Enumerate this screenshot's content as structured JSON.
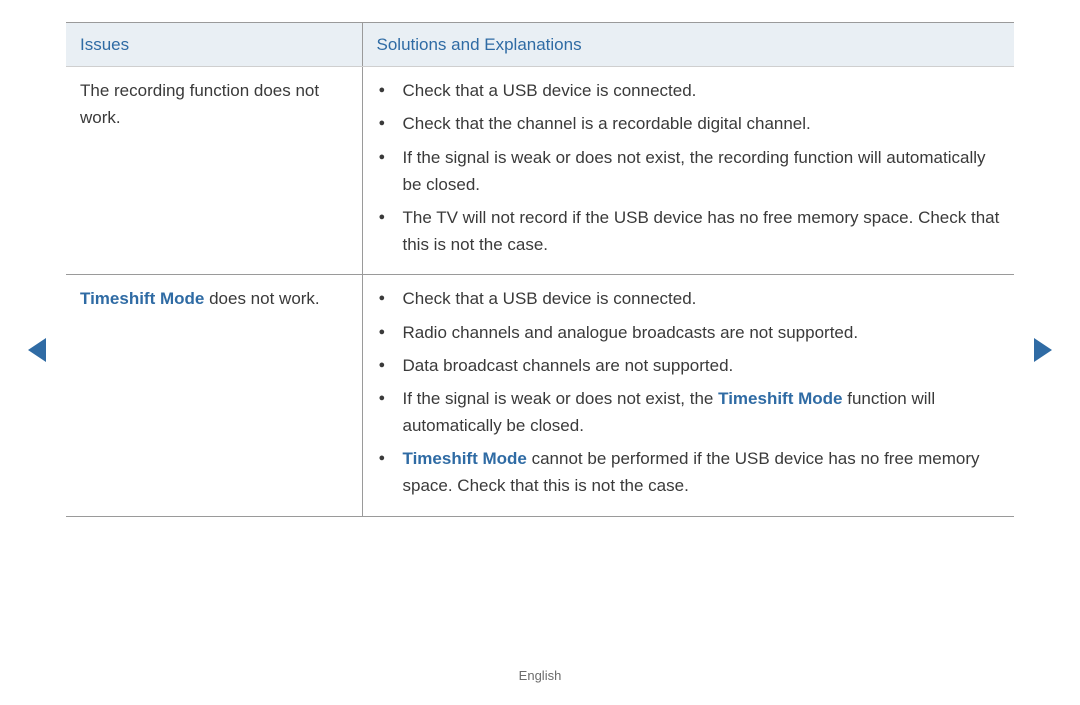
{
  "accent_color": "#2f6ba4",
  "header_bg": "#e9eff4",
  "border_color": "#9a9a9a",
  "text_color": "#3a3a3a",
  "table": {
    "header": {
      "issues": "Issues",
      "solutions": "Solutions and Explanations"
    },
    "rows": [
      {
        "issue_parts": [
          {
            "text": "The recording function does not work.",
            "highlight": false
          }
        ],
        "solutions": [
          [
            {
              "text": "Check that a USB device is connected.",
              "highlight": false
            }
          ],
          [
            {
              "text": "Check that the channel is a recordable digital channel.",
              "highlight": false
            }
          ],
          [
            {
              "text": "If the signal is weak or does not exist, the recording function will automatically be closed.",
              "highlight": false
            }
          ],
          [
            {
              "text": "The TV will not record if the USB device has no free memory space. Check that this is not the case.",
              "highlight": false
            }
          ]
        ]
      },
      {
        "issue_parts": [
          {
            "text": "Timeshift Mode",
            "highlight": true
          },
          {
            "text": " does not work.",
            "highlight": false
          }
        ],
        "solutions": [
          [
            {
              "text": "Check that a USB device is connected.",
              "highlight": false
            }
          ],
          [
            {
              "text": "Radio channels and analogue broadcasts are not supported.",
              "highlight": false
            }
          ],
          [
            {
              "text": "Data broadcast channels are not supported.",
              "highlight": false
            }
          ],
          [
            {
              "text": "If the signal is weak or does not exist, the ",
              "highlight": false
            },
            {
              "text": "Timeshift Mode",
              "highlight": true
            },
            {
              "text": " function will automatically be closed.",
              "highlight": false
            }
          ],
          [
            {
              "text": "Timeshift Mode",
              "highlight": true
            },
            {
              "text": " cannot be performed if the USB device has no free memory space. Check that this is not the case.",
              "highlight": false
            }
          ]
        ]
      }
    ]
  },
  "footer": "English"
}
